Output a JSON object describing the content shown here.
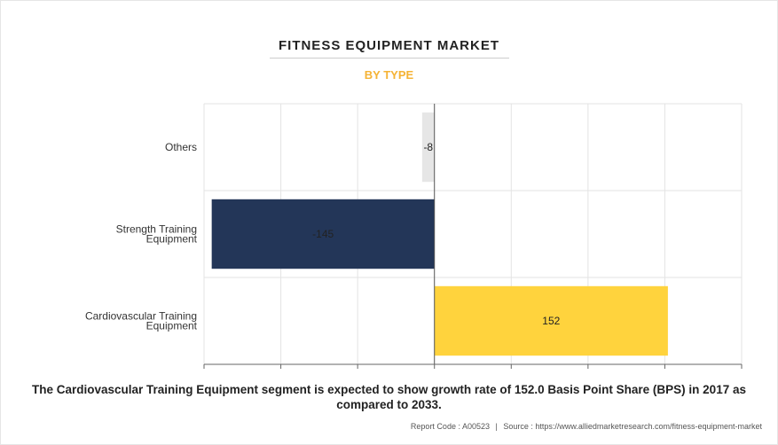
{
  "chart_data": {
    "type": "bar",
    "orientation": "horizontal",
    "title": "FITNESS EQUIPMENT MARKET",
    "subtitle": "BY TYPE",
    "categories": [
      "Others",
      "Strength Training Equipment",
      "Cardiovascular Training Equipment"
    ],
    "category_lines": [
      [
        "Others"
      ],
      [
        "Strength Training",
        "Equipment"
      ],
      [
        "Cardiovascular Training",
        "Equipment"
      ]
    ],
    "values": [
      -8,
      -145,
      152
    ],
    "labels": [
      "-8",
      "-145",
      "152"
    ],
    "colors": [
      "#e6e6e6",
      "#233658",
      "#ffd33d"
    ],
    "xlim": [
      -150,
      200
    ],
    "xticks": [
      -150,
      -100,
      -50,
      0,
      50,
      100,
      150,
      200
    ],
    "grid": true
  },
  "caption": "The Cardiovascular Training Equipment segment is expected to show growth rate of 152.0 Basis Point Share (BPS) in 2017 as compared to 2033.",
  "footer": {
    "report_code": "Report Code : A00523",
    "separator": "|",
    "source": "Source : https://www.alliedmarketresearch.com/fitness-equipment-market"
  },
  "colors": {
    "subtitle": "#f5b335",
    "grid": "#e3e3e3",
    "axis": "#666666"
  }
}
